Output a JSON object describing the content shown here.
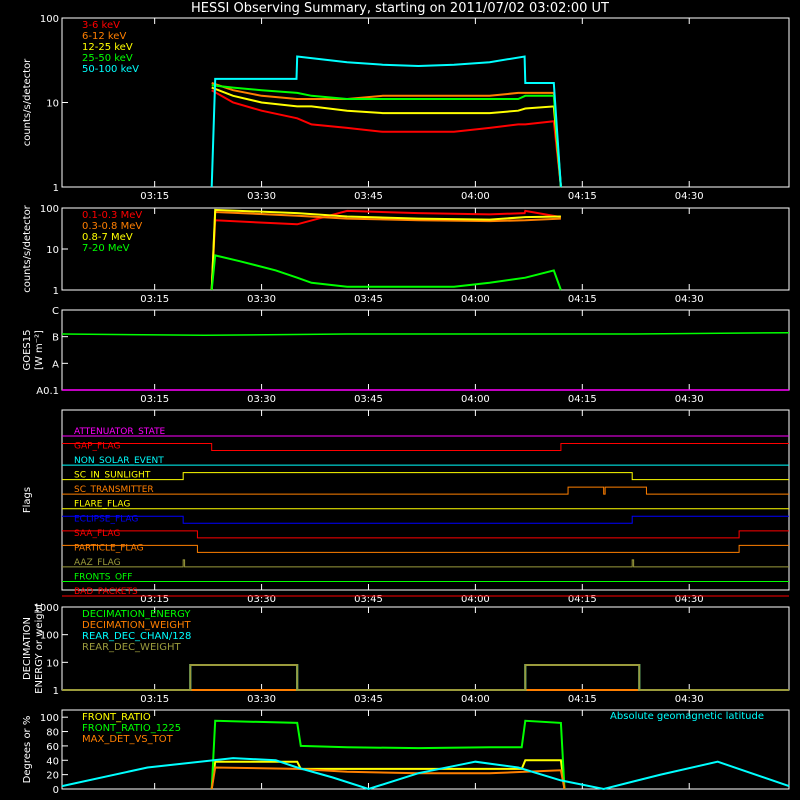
{
  "title": "HESSI Observing Summary, starting on 2011/07/02 03:02:00 UT",
  "time_ticks": [
    "03:15",
    "03:30",
    "03:45",
    "04:00",
    "04:15",
    "04:30"
  ],
  "colors": {
    "magenta": "#ff00ff",
    "red": "#ff0000",
    "orange": "#ff7f00",
    "yellow": "#ffff00",
    "green": "#00ff00",
    "cyan": "#00ffff",
    "blue": "#0000ff",
    "olive": "#9b9b3c",
    "lightorange": "#ff9a3c",
    "brown": "#d2691e"
  },
  "chart_data": [
    {
      "id": "rates",
      "type": "line",
      "ylabel": "counts/s/detector",
      "yscale": "log",
      "ylim": [
        1,
        100
      ],
      "ytick_labels": [
        "1",
        "10",
        "100"
      ],
      "x_unit": "minutes after 03:02:00 UT",
      "xlim": [
        0,
        102
      ],
      "legend": [
        "3-6 keV",
        "6-12 keV",
        "12-25 keV",
        "25-50 keV",
        "50-100 keV"
      ],
      "series": [
        {
          "name": "3-6 keV",
          "color": "red",
          "x": [
            21,
            24,
            28,
            33,
            35,
            40,
            45,
            50,
            55,
            60,
            64,
            65,
            69,
            70
          ],
          "y": [
            14,
            10,
            8,
            6.5,
            5.5,
            5,
            4.5,
            4.5,
            4.5,
            5,
            5.5,
            5.5,
            6,
            1
          ]
        },
        {
          "name": "6-12 keV",
          "color": "orange",
          "x": [
            21,
            24,
            28,
            33,
            35,
            40,
            45,
            50,
            55,
            60,
            64,
            65,
            69,
            70
          ],
          "y": [
            17,
            14,
            12,
            11,
            11,
            11,
            12,
            12,
            12,
            12,
            13,
            13,
            13,
            1
          ]
        },
        {
          "name": "12-25 keV",
          "color": "yellow",
          "x": [
            21,
            24,
            28,
            33,
            35,
            40,
            45,
            50,
            55,
            60,
            64,
            65,
            69,
            70
          ],
          "y": [
            15,
            12,
            10,
            9,
            9,
            8,
            7.5,
            7.5,
            7.5,
            7.5,
            8,
            8.5,
            9,
            1
          ]
        },
        {
          "name": "25-50 keV",
          "color": "green",
          "x": [
            21,
            24,
            28,
            33,
            35,
            40,
            45,
            50,
            55,
            60,
            64,
            65,
            69,
            70
          ],
          "y": [
            16,
            15,
            14,
            13,
            12,
            11,
            11,
            11,
            11,
            11,
            11,
            12,
            12,
            1
          ]
        },
        {
          "name": "50-100 keV",
          "color": "cyan",
          "x": [
            21,
            21.5,
            32.9,
            33,
            40,
            45,
            50,
            55,
            60,
            64.9,
            65,
            69,
            70
          ],
          "y": [
            1,
            19,
            19,
            35,
            30,
            28,
            27,
            28,
            30,
            35,
            17,
            17,
            1
          ]
        }
      ]
    },
    {
      "id": "gamma",
      "type": "line",
      "ylabel": "counts/s/detector",
      "yscale": "log",
      "ylim": [
        1,
        100
      ],
      "ytick_labels": [
        "1",
        "10",
        "100"
      ],
      "xlim": [
        0,
        102
      ],
      "legend": [
        "0.1-0.3 MeV",
        "0.3-0.8 MeV",
        "0.8-7 MeV",
        "7-20 MeV"
      ],
      "series": [
        {
          "name": "0.1-0.3 MeV",
          "color": "red",
          "x": [
            21,
            21.5,
            33,
            40,
            50,
            60,
            64.9,
            65,
            70
          ],
          "y": [
            1,
            50,
            40,
            85,
            75,
            70,
            75,
            85,
            60
          ]
        },
        {
          "name": "0.3-0.8 MeV",
          "color": "orange",
          "x": [
            21,
            21.5,
            33,
            40,
            50,
            60,
            65,
            70
          ],
          "y": [
            1,
            80,
            65,
            55,
            50,
            48,
            50,
            55
          ]
        },
        {
          "name": "0.8-7 MeV",
          "color": "yellow",
          "x": [
            21,
            21.5,
            33,
            40,
            50,
            60,
            65,
            70
          ],
          "y": [
            1,
            90,
            75,
            62,
            55,
            52,
            60,
            62
          ]
        },
        {
          "name": "7-20 MeV",
          "color": "green",
          "x": [
            21,
            21.5,
            25,
            30,
            33,
            35,
            40,
            55,
            60,
            65,
            69,
            70
          ],
          "y": [
            1,
            7,
            5,
            3,
            2,
            1.5,
            1.2,
            1.2,
            1.5,
            2,
            3,
            1
          ]
        }
      ]
    },
    {
      "id": "goes",
      "type": "line",
      "ylabel": "GOES15",
      "ylabel2": "[W m⁻²]",
      "ytick_labels": [
        "A0.1",
        "A",
        "B",
        "C"
      ],
      "xlim": [
        0,
        102
      ],
      "series": [
        {
          "name": "GOES",
          "color": "green",
          "x": [
            0,
            20,
            40,
            60,
            80,
            102
          ],
          "y": [
            2.1,
            2.05,
            2.1,
            2.1,
            2.1,
            2.15
          ]
        },
        {
          "name": "GOES-low",
          "color": "magenta",
          "x": [
            0,
            102
          ],
          "y": [
            0,
            0
          ]
        }
      ]
    },
    {
      "id": "flags",
      "type": "line",
      "ylabel": "Flags",
      "xlim": [
        0,
        102
      ],
      "flags": [
        {
          "name": "ATTENUATOR_STATE",
          "color": "magenta",
          "segments": [
            [
              0,
              102,
              0
            ]
          ]
        },
        {
          "name": "GAP_FLAG",
          "color": "red",
          "segments": [
            [
              0,
              21,
              1
            ],
            [
              21,
              70,
              0
            ],
            [
              70,
              102,
              1
            ]
          ]
        },
        {
          "name": "NON_SOLAR_EVENT",
          "color": "cyan",
          "segments": [
            [
              0,
              102,
              0
            ]
          ]
        },
        {
          "name": "SC_IN_SUNLIGHT",
          "color": "yellow",
          "segments": [
            [
              0,
              17,
              0
            ],
            [
              17,
              80,
              1
            ],
            [
              80,
              102,
              0
            ]
          ]
        },
        {
          "name": "SC_TRANSMITTER",
          "color": "orange",
          "segments": [
            [
              0,
              71,
              0
            ],
            [
              71,
              76,
              1
            ],
            [
              76,
              76.2,
              0
            ],
            [
              76.2,
              82,
              1
            ],
            [
              82,
              102,
              0
            ]
          ]
        },
        {
          "name": "FLARE_FLAG",
          "color": "yellow",
          "segments": [
            [
              0,
              102,
              0
            ]
          ]
        },
        {
          "name": "ECLIPSE_FLAG",
          "color": "blue",
          "segments": [
            [
              0,
              17,
              1
            ],
            [
              17,
              80,
              0
            ],
            [
              80,
              102,
              1
            ]
          ]
        },
        {
          "name": "SAA_FLAG",
          "color": "red",
          "segments": [
            [
              0,
              19,
              1
            ],
            [
              19,
              95,
              0
            ],
            [
              95,
              102,
              1
            ]
          ]
        },
        {
          "name": "PARTICLE_FLAG",
          "color": "orange",
          "segments": [
            [
              0,
              19,
              1
            ],
            [
              19,
              95,
              0
            ],
            [
              95,
              102,
              1
            ]
          ]
        },
        {
          "name": "AAZ_FLAG",
          "color": "olive",
          "segments": [
            [
              0,
              17,
              0
            ],
            [
              17,
              17.2,
              1
            ],
            [
              17.2,
              80,
              0
            ],
            [
              80,
              80.2,
              1
            ],
            [
              80.2,
              102,
              0
            ]
          ]
        },
        {
          "name": "FRONTS_OFF",
          "color": "green",
          "segments": [
            [
              0,
              102,
              0
            ]
          ]
        },
        {
          "name": "BAD_PACKETS",
          "color": "red",
          "segments": [
            [
              0,
              102,
              0
            ]
          ]
        }
      ]
    },
    {
      "id": "decimation",
      "type": "line",
      "ylabel": "DECIMATION",
      "ylabel2": "ENERGY or weight",
      "yscale": "log",
      "ylim": [
        1,
        1000
      ],
      "ytick_labels": [
        "1",
        "10",
        "100",
        "1000"
      ],
      "xlim": [
        0,
        102
      ],
      "legend": [
        "DECIMATION_ENERGY",
        "DECIMATION_WEIGHT",
        "REAR_DEC_CHAN/128",
        "REAR_DEC_WEIGHT"
      ],
      "series": [
        {
          "name": "DECIMATION_ENERGY",
          "color": "green",
          "x": [
            0,
            102
          ],
          "y": [
            1,
            1
          ]
        },
        {
          "name": "DECIMATION_WEIGHT",
          "color": "orange",
          "x": [
            0,
            102
          ],
          "y": [
            1,
            1
          ]
        },
        {
          "name": "REAR_DEC_CHAN/128",
          "color": "cyan",
          "x": [
            0,
            18,
            18,
            33,
            33,
            65,
            65,
            81,
            81,
            102
          ],
          "y": [
            1,
            1,
            8,
            8,
            1,
            1,
            8,
            8,
            1,
            1
          ]
        },
        {
          "name": "REAR_DEC_WEIGHT",
          "color": "olive",
          "x": [
            0,
            18,
            18,
            33,
            33,
            65,
            65,
            81,
            81,
            102
          ],
          "y": [
            1,
            1,
            8,
            8,
            1,
            1,
            8,
            8,
            1,
            1
          ]
        }
      ]
    },
    {
      "id": "ratios",
      "type": "line",
      "ylabel": "Degrees or %",
      "ylim": [
        0,
        110
      ],
      "ytick_labels": [
        "0",
        "20",
        "40",
        "60",
        "80",
        "100"
      ],
      "xlim": [
        0,
        102
      ],
      "legend": [
        "FRONT_RATIO",
        "FRONT_RATIO_1225",
        "MAX_DET_VS_TOT"
      ],
      "annotation": "Absolute geomagnetic latitude",
      "series": [
        {
          "name": "FRONT_RATIO",
          "color": "yellow",
          "x": [
            21,
            21.5,
            33,
            33.5,
            64.5,
            65,
            70,
            70.5
          ],
          "y": [
            0,
            38,
            38,
            28,
            28,
            40,
            40,
            0
          ]
        },
        {
          "name": "FRONT_RATIO_1225",
          "color": "green",
          "x": [
            21,
            21.5,
            33,
            33.5,
            40,
            50,
            60,
            64.5,
            65,
            70,
            70.5
          ],
          "y": [
            0,
            95,
            92,
            60,
            58,
            57,
            58,
            58,
            95,
            92,
            0
          ]
        },
        {
          "name": "MAX_DET_VS_TOT",
          "color": "orange",
          "x": [
            21,
            21.5,
            33,
            40,
            50,
            60,
            65,
            70,
            70.5
          ],
          "y": [
            0,
            30,
            28,
            24,
            22,
            22,
            24,
            26,
            0
          ]
        },
        {
          "name": "Absolute geomagnetic latitude",
          "color": "cyan",
          "x": [
            0,
            12,
            24,
            30,
            33,
            38,
            43,
            50,
            58,
            64,
            70,
            76,
            84,
            92,
            102
          ],
          "y": [
            4,
            30,
            43,
            40,
            30,
            16,
            0,
            22,
            38,
            30,
            12,
            0,
            20,
            38,
            4
          ]
        }
      ]
    }
  ]
}
